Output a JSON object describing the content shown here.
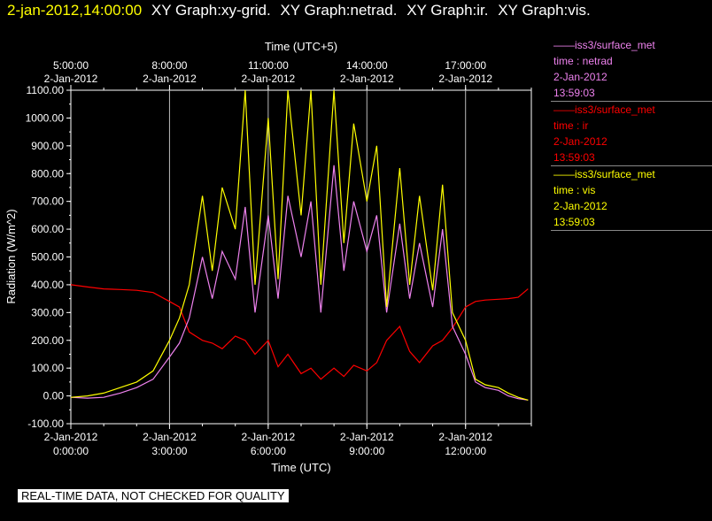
{
  "header": {
    "timestamp": "2-jan-2012,14:00:00",
    "graph_labels": [
      "XY Graph:xy-grid.",
      "XY Graph:netrad.",
      "XY Graph:ir.",
      "XY Graph:vis."
    ]
  },
  "legend": [
    {
      "source": "——iss3/surface_met",
      "var": "time : netrad",
      "date": "2-Jan-2012",
      "time": "13:59:03",
      "color": "#ee82ee"
    },
    {
      "source": "——iss3/surface_met",
      "var": "time : ir",
      "date": "2-Jan-2012",
      "time": "13:59:03",
      "color": "#ff0000"
    },
    {
      "source": "——iss3/surface_met",
      "var": "time : vis",
      "date": "2-Jan-2012",
      "time": "13:59:03",
      "color": "#ffff00"
    }
  ],
  "qc_notice": "REAL-TIME DATA, NOT CHECKED FOR QUALITY",
  "chart_data": {
    "type": "line",
    "ylabel": "Radiation (W/m^2)",
    "xlabel_bottom": "Time (UTC)",
    "xlabel_top": "Time (UTC+5)",
    "ylim": [
      -100,
      1100
    ],
    "xlim": [
      0,
      14
    ],
    "y_ticks": [
      "-100.00",
      "0.00",
      "100.00",
      "200.00",
      "300.00",
      "400.00",
      "500.00",
      "600.00",
      "700.00",
      "800.00",
      "900.00",
      "1000.00",
      "1100.00"
    ],
    "x_ticks_bottom": [
      {
        "date": "2-Jan-2012",
        "time": "0:00:00"
      },
      {
        "date": "2-Jan-2012",
        "time": "3:00:00"
      },
      {
        "date": "2-Jan-2012",
        "time": "6:00:00"
      },
      {
        "date": "2-Jan-2012",
        "time": "9:00:00"
      },
      {
        "date": "2-Jan-2012",
        "time": "12:00:00"
      }
    ],
    "x_ticks_top": [
      {
        "time": "5:00:00",
        "date": "2-Jan-2012"
      },
      {
        "time": "8:00:00",
        "date": "2-Jan-2012"
      },
      {
        "time": "11:00:00",
        "date": "2-Jan-2012"
      },
      {
        "time": "14:00:00",
        "date": "2-Jan-2012"
      },
      {
        "time": "17:00:00",
        "date": "2-Jan-2012"
      }
    ],
    "grid": true,
    "series": [
      {
        "name": "time : ir",
        "color": "#ff0000",
        "x": [
          0,
          0.5,
          1,
          1.5,
          2,
          2.5,
          3,
          3.3,
          3.6,
          4,
          4.3,
          4.6,
          5,
          5.3,
          5.6,
          6,
          6.3,
          6.6,
          7,
          7.3,
          7.6,
          8,
          8.3,
          8.6,
          9,
          9.3,
          9.6,
          10,
          10.3,
          10.6,
          11,
          11.3,
          11.6,
          12,
          12.3,
          12.6,
          13,
          13.3,
          13.6,
          13.9
        ],
        "y": [
          400,
          392,
          385,
          383,
          380,
          372,
          340,
          320,
          230,
          200,
          190,
          170,
          215,
          200,
          150,
          200,
          105,
          150,
          80,
          100,
          60,
          100,
          70,
          110,
          90,
          120,
          200,
          250,
          160,
          120,
          180,
          200,
          245,
          320,
          340,
          345,
          348,
          350,
          355,
          385
        ]
      },
      {
        "name": "time : netrad",
        "color": "#ee82ee",
        "x": [
          0,
          0.5,
          1,
          1.5,
          2,
          2.5,
          3,
          3.3,
          3.6,
          4,
          4.3,
          4.6,
          5,
          5.3,
          5.6,
          6,
          6.3,
          6.6,
          7,
          7.3,
          7.6,
          8,
          8.3,
          8.6,
          9,
          9.3,
          9.6,
          10,
          10.3,
          10.6,
          11,
          11.3,
          11.6,
          12,
          12.3,
          12.6,
          13,
          13.3,
          13.6,
          13.9
        ],
        "y": [
          -5,
          -8,
          -5,
          10,
          30,
          60,
          140,
          190,
          280,
          500,
          350,
          520,
          420,
          680,
          300,
          650,
          350,
          720,
          500,
          700,
          300,
          830,
          450,
          700,
          520,
          650,
          300,
          620,
          350,
          550,
          320,
          600,
          250,
          150,
          50,
          30,
          20,
          0,
          -10,
          -15
        ]
      },
      {
        "name": "time : vis",
        "color": "#ffff00",
        "x": [
          0,
          0.5,
          1,
          1.5,
          2,
          2.5,
          3,
          3.3,
          3.6,
          4,
          4.3,
          4.6,
          5,
          5.3,
          5.6,
          6,
          6.3,
          6.6,
          7,
          7.3,
          7.6,
          8,
          8.3,
          8.6,
          9,
          9.3,
          9.6,
          10,
          10.3,
          10.6,
          11,
          11.3,
          11.6,
          12,
          12.3,
          12.6,
          13,
          13.3,
          13.6,
          13.9
        ],
        "y": [
          -5,
          0,
          10,
          30,
          50,
          90,
          200,
          280,
          400,
          720,
          450,
          750,
          600,
          1100,
          400,
          1000,
          420,
          1100,
          650,
          1100,
          400,
          1100,
          550,
          980,
          700,
          900,
          320,
          820,
          400,
          720,
          380,
          760,
          300,
          200,
          60,
          40,
          30,
          10,
          -5,
          -15
        ]
      }
    ]
  }
}
